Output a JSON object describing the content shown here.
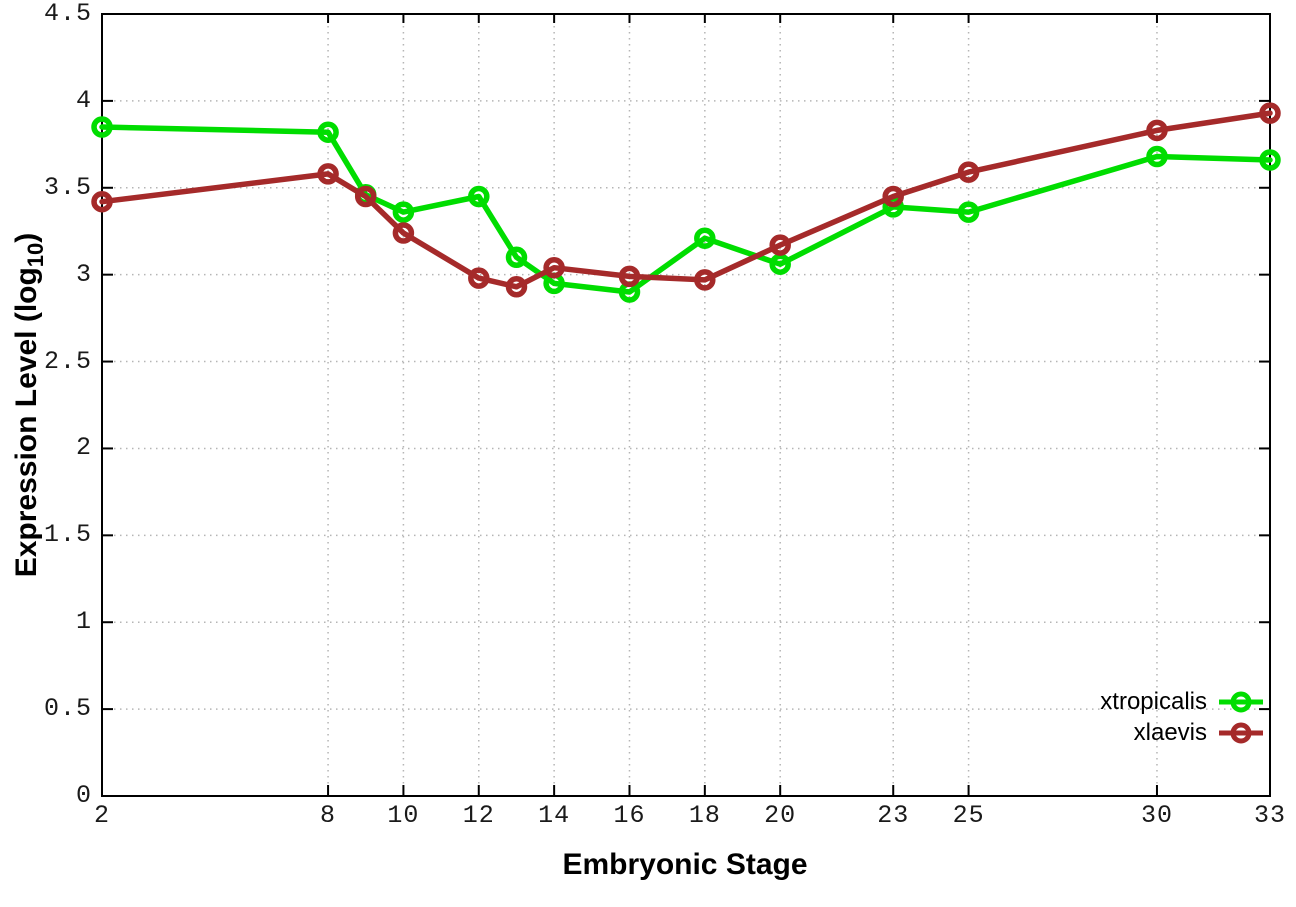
{
  "figure": {
    "background": "#ffffff",
    "xlabel": "Embryonic Stage",
    "ylabel_main": "Expression Level (log",
    "ylabel_sub": "10",
    "ylabel_end": ")"
  },
  "legend": {
    "position": "bottom-right",
    "entries": [
      {
        "label": "xtropicalis",
        "color": "#00dd00"
      },
      {
        "label": "xlaevis",
        "color": "#a52a2a"
      }
    ]
  },
  "chart_data": {
    "type": "line",
    "title": "",
    "xlabel": "Embryonic Stage",
    "ylabel": "Expression Level (log10)",
    "xlim": [
      2,
      33
    ],
    "ylim": [
      0,
      4.5
    ],
    "grid": true,
    "grid_style": "dotted",
    "x_ticks": [
      2,
      8,
      10,
      12,
      14,
      16,
      18,
      20,
      23,
      25,
      30,
      33
    ],
    "y_ticks": [
      0,
      0.5,
      1,
      1.5,
      2,
      2.5,
      3,
      3.5,
      4,
      4.5
    ],
    "y_tick_labels": [
      "0",
      "0.5",
      "1",
      "1.5",
      "2",
      "2.5",
      "3",
      "3.5",
      "4",
      "4.5"
    ],
    "x": [
      2,
      8,
      9,
      10,
      12,
      13,
      14,
      16,
      18,
      20,
      23,
      25,
      30,
      33
    ],
    "series": [
      {
        "name": "xtropicalis",
        "color": "#00dd00",
        "marker": "open-circle",
        "values": [
          3.85,
          3.82,
          3.46,
          3.36,
          3.45,
          3.1,
          2.95,
          2.9,
          3.21,
          3.06,
          3.39,
          3.36,
          3.68,
          3.66
        ]
      },
      {
        "name": "xlaevis",
        "color": "#a52a2a",
        "marker": "open-circle",
        "values": [
          3.42,
          3.58,
          3.45,
          3.24,
          2.98,
          2.93,
          3.04,
          2.99,
          2.97,
          3.17,
          3.45,
          3.59,
          3.83,
          3.93
        ]
      }
    ]
  }
}
